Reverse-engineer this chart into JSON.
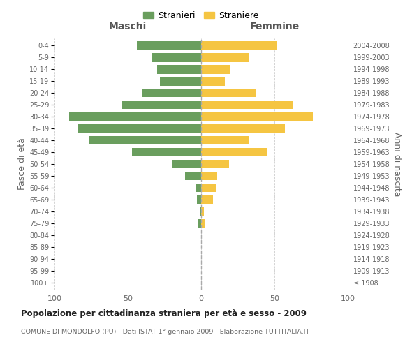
{
  "age_groups": [
    "100+",
    "95-99",
    "90-94",
    "85-89",
    "80-84",
    "75-79",
    "70-74",
    "65-69",
    "60-64",
    "55-59",
    "50-54",
    "45-49",
    "40-44",
    "35-39",
    "30-34",
    "25-29",
    "20-24",
    "15-19",
    "10-14",
    "5-9",
    "0-4"
  ],
  "birth_years": [
    "≤ 1908",
    "1909-1913",
    "1914-1918",
    "1919-1923",
    "1924-1928",
    "1929-1933",
    "1934-1938",
    "1939-1943",
    "1944-1948",
    "1949-1953",
    "1954-1958",
    "1959-1963",
    "1964-1968",
    "1969-1973",
    "1974-1978",
    "1979-1983",
    "1984-1988",
    "1989-1993",
    "1994-1998",
    "1999-2003",
    "2004-2008"
  ],
  "maschi": [
    0,
    0,
    0,
    0,
    0,
    2,
    1,
    3,
    4,
    11,
    20,
    47,
    76,
    84,
    90,
    54,
    40,
    28,
    30,
    34,
    44
  ],
  "femmine": [
    0,
    0,
    0,
    0,
    0,
    3,
    2,
    8,
    10,
    11,
    19,
    45,
    33,
    57,
    76,
    63,
    37,
    16,
    20,
    33,
    52
  ],
  "color_maschi": "#6a9e5e",
  "color_femmine": "#f5c542",
  "xlabel_left": "Maschi",
  "xlabel_right": "Femmine",
  "ylabel_left": "Fasce di età",
  "ylabel_right": "Anni di nascita",
  "legend_maschi": "Stranieri",
  "legend_femmine": "Straniere",
  "title": "Popolazione per cittadinanza straniera per età e sesso - 2009",
  "subtitle": "COMUNE DI MONDOLFO (PU) - Dati ISTAT 1° gennaio 2009 - Elaborazione TUTTITALIA.IT",
  "xlim": 100,
  "bg_color": "#ffffff",
  "grid_color": "#cccccc",
  "bar_height": 0.75
}
